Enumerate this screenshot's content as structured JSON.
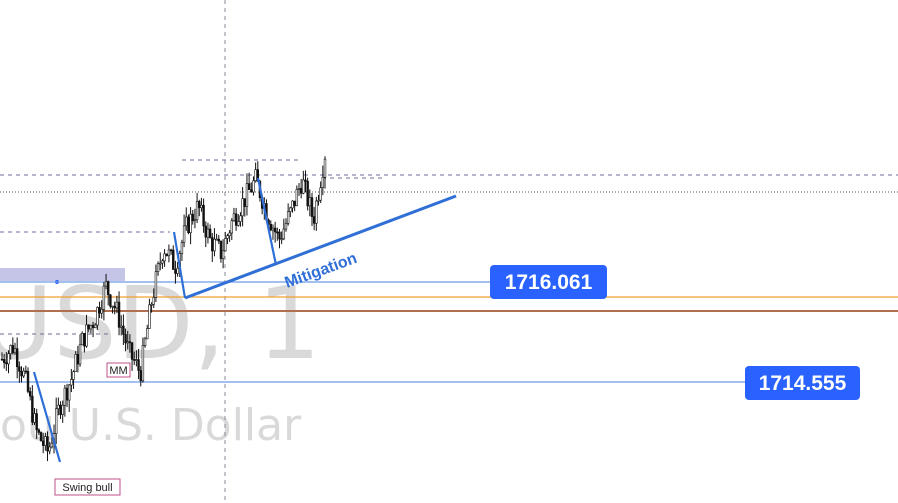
{
  "watermark": {
    "symbol_partial": "USD, 1",
    "name_partial": "ou U.S. Dollar"
  },
  "annotations": {
    "mitigation": "Mitigation",
    "mm": "MM",
    "swing_bull": "Swing bull"
  },
  "price_tags": [
    {
      "value": "1716.061"
    },
    {
      "value": "1714.555"
    }
  ],
  "colors": {
    "accent": "#2962ff",
    "trendline": "#2f6fd6",
    "orange_line": "#f0a030",
    "brown_line": "#b07050",
    "hline": "#6b9be8",
    "zone": "#c5c5e8"
  },
  "chart_data": {
    "type": "candlestick",
    "y_reference_levels": [
      1716.061,
      1714.555
    ],
    "horizontal_levels": [
      {
        "price": 1716.061,
        "style": "solid",
        "color": "#6b9be8"
      },
      {
        "price": 1714.555,
        "style": "solid",
        "color": "#6b9be8"
      },
      {
        "price": 1715.8,
        "style": "solid",
        "color": "#f0a030"
      },
      {
        "price": 1715.6,
        "style": "solid",
        "color": "#b07050"
      }
    ],
    "close_path": [
      1714.9,
      1715.1,
      1714.6,
      1713.8,
      1713.5,
      1714.2,
      1714.6,
      1715.2,
      1715.5,
      1716.0,
      1715.6,
      1715.0,
      1714.7,
      1715.8,
      1716.6,
      1716.3,
      1716.9,
      1717.2,
      1716.7,
      1716.5,
      1717.0,
      1717.3,
      1717.6,
      1717.1,
      1716.7,
      1717.1,
      1717.6,
      1717.0,
      1718.0
    ],
    "grid": false
  }
}
